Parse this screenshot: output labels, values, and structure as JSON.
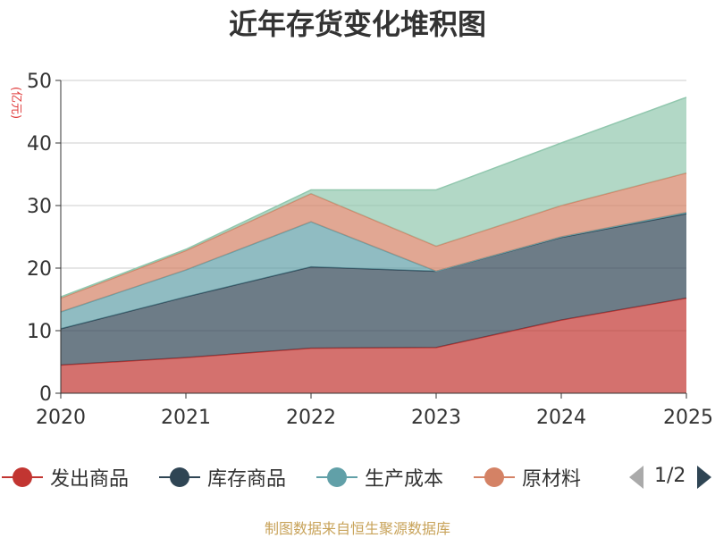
{
  "chart_data": {
    "type": "area",
    "stacked": true,
    "title": "近年存货变化堆积图",
    "ylabel": "(亿元)",
    "xlabel": "",
    "x": [
      "2020",
      "2021",
      "2022",
      "2023",
      "2024",
      "2025"
    ],
    "ylim": [
      0,
      50
    ],
    "yticks": [
      0,
      10,
      20,
      30,
      40,
      50
    ],
    "grid": true,
    "legend_position": "bottom",
    "series": [
      {
        "name": "发出商品",
        "color": "#c23531",
        "values": [
          4.5,
          5.7,
          7.2,
          7.3,
          11.7,
          15.2
        ]
      },
      {
        "name": "库存商品",
        "color": "#2f4554",
        "values": [
          5.8,
          9.7,
          13.0,
          12.2,
          13.2,
          13.5
        ]
      },
      {
        "name": "生产成本",
        "color": "#61a0a8",
        "values": [
          2.7,
          4.3,
          7.2,
          0.0,
          0.1,
          0.2
        ]
      },
      {
        "name": "原材料",
        "color": "#d48265",
        "values": [
          2.2,
          3.1,
          4.5,
          4.0,
          5.0,
          6.3
        ]
      },
      {
        "name": "",
        "color": "#91c7ae",
        "values": [
          0.2,
          0.2,
          0.6,
          9.0,
          10.0,
          12.1
        ]
      }
    ]
  },
  "legend": {
    "page_label": "1/2"
  },
  "footer": {
    "source": "制图数据来自恒生聚源数据库"
  }
}
